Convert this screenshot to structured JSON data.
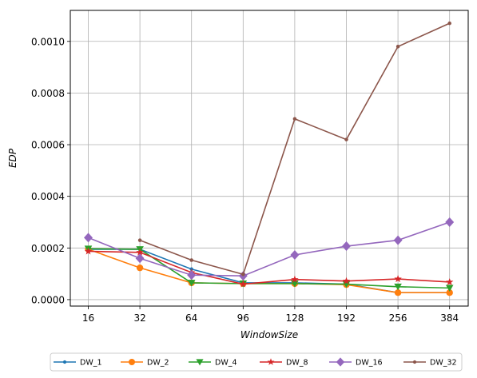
{
  "chart_data": {
    "type": "line",
    "title": "",
    "xlabel": "WindowSize",
    "ylabel": "EDP",
    "categories": [
      "16",
      "32",
      "64",
      "96",
      "128",
      "192",
      "256",
      "384"
    ],
    "ylim": [
      -2.5e-05,
      0.00112
    ],
    "yticks": [
      0.0,
      0.0002,
      0.0004,
      0.0006,
      0.0008,
      0.001
    ],
    "ytick_labels": [
      "0.0000",
      "0.0002",
      "0.0004",
      "0.0006",
      "0.0008",
      "0.0010"
    ],
    "grid": true,
    "legend_position": "bottom-center",
    "series": [
      {
        "name": "DW_1",
        "color": "#1f77b4",
        "marker": "point",
        "values": [
          0.000195,
          0.000195,
          0.000118,
          6.5e-05,
          6.5e-05,
          6e-05,
          2.7e-05,
          2.7e-05
        ]
      },
      {
        "name": "DW_2",
        "color": "#ff7f0e",
        "marker": "circle",
        "values": [
          0.000195,
          0.000123,
          6.5e-05,
          6.2e-05,
          6.2e-05,
          5.8e-05,
          2.7e-05,
          2.7e-05
        ]
      },
      {
        "name": "DW_4",
        "color": "#2ca02c",
        "marker": "triangle-down",
        "values": [
          0.000197,
          0.000195,
          6.5e-05,
          6.2e-05,
          6.2e-05,
          6e-05,
          5e-05,
          4.5e-05
        ]
      },
      {
        "name": "DW_8",
        "color": "#d62728",
        "marker": "star",
        "values": [
          0.000187,
          0.000183,
          0.000105,
          6e-05,
          7.8e-05,
          7.2e-05,
          8e-05,
          6.8e-05
        ]
      },
      {
        "name": "DW_16",
        "color": "#9467bd",
        "marker": "diamond",
        "values": [
          0.00024,
          0.00016,
          9.5e-05,
          9.2e-05,
          0.000173,
          0.000207,
          0.00023,
          0.0003
        ]
      },
      {
        "name": "DW_32",
        "color": "#8c564b",
        "marker": "point",
        "values": [
          null,
          0.00023,
          0.000153,
          9.8e-05,
          0.0007,
          0.00062,
          0.00098,
          0.00107
        ]
      }
    ]
  }
}
